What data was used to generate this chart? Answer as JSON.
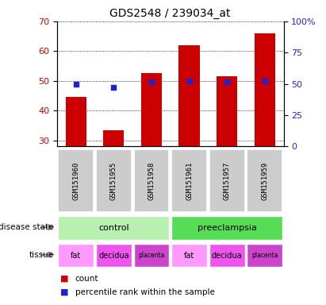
{
  "title": "GDS2548 / 239034_at",
  "samples": [
    "GSM151960",
    "GSM151955",
    "GSM151958",
    "GSM151961",
    "GSM151957",
    "GSM151959"
  ],
  "bar_values": [
    44.5,
    33.5,
    52.5,
    62.0,
    51.5,
    66.0
  ],
  "percentile_values": [
    50.0,
    47.5,
    51.5,
    52.0,
    51.5,
    52.5
  ],
  "bar_color": "#cc0000",
  "percentile_color": "#2222cc",
  "ylim_left": [
    28,
    70
  ],
  "ylim_right": [
    0,
    100
  ],
  "yticks_left": [
    30,
    40,
    50,
    60,
    70
  ],
  "yticks_right": [
    0,
    25,
    50,
    75,
    100
  ],
  "ytick_labels_right": [
    "0",
    "25",
    "50",
    "75",
    "100%"
  ],
  "disease_state": [
    {
      "label": "control",
      "span": [
        0,
        3
      ],
      "color": "#b8f0b0"
    },
    {
      "label": "preeclampsia",
      "span": [
        3,
        6
      ],
      "color": "#55dd55"
    }
  ],
  "tissue": [
    {
      "label": "fat",
      "span": [
        0,
        1
      ],
      "color": "#ff99ff"
    },
    {
      "label": "decidua",
      "span": [
        1,
        2
      ],
      "color": "#ee55ee"
    },
    {
      "label": "placenta",
      "span": [
        2,
        3
      ],
      "color": "#cc44cc"
    },
    {
      "label": "fat",
      "span": [
        3,
        4
      ],
      "color": "#ff99ff"
    },
    {
      "label": "decidua",
      "span": [
        4,
        5
      ],
      "color": "#ee55ee"
    },
    {
      "label": "placenta",
      "span": [
        5,
        6
      ],
      "color": "#cc44cc"
    }
  ],
  "legend_items": [
    {
      "label": "count",
      "color": "#cc0000"
    },
    {
      "label": "percentile rank within the sample",
      "color": "#2222cc"
    }
  ],
  "bar_width": 0.55,
  "left_ytick_color": "#cc0000",
  "right_ytick_color": "#2222cc",
  "background_color": "#ffffff"
}
